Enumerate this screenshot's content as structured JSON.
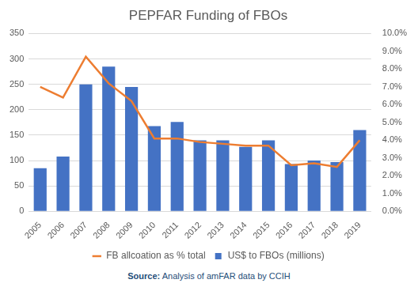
{
  "chart_data": {
    "type": "bar",
    "title": "PEPFAR Funding of FBOs",
    "source": "Source: Analysis of amFAR data by CCIH",
    "categories": [
      "2005",
      "2006",
      "2007",
      "2008",
      "2009",
      "2010",
      "2011",
      "2012",
      "2013",
      "2014",
      "2015",
      "2016",
      "2017",
      "2018",
      "2019"
    ],
    "series": [
      {
        "name": "US$ to FBOs (millions)",
        "type": "bar",
        "color": "#4472c4",
        "values": [
          85,
          108,
          250,
          285,
          245,
          168,
          176,
          140,
          140,
          127,
          140,
          93,
          100,
          97,
          160
        ]
      },
      {
        "name": "FB allcoation as % total",
        "type": "line",
        "axis": "y2",
        "color": "#ed7d31",
        "marker": "none",
        "line_style": "solid",
        "values": [
          7.0,
          6.4,
          8.7,
          7.2,
          6.2,
          4.1,
          4.1,
          3.9,
          3.8,
          3.7,
          3.7,
          2.6,
          2.7,
          2.5,
          4.0
        ]
      }
    ],
    "ylim": [
      0,
      350
    ],
    "yticks": [
      0,
      50,
      100,
      150,
      200,
      250,
      300,
      350
    ],
    "y2lim": [
      0,
      10
    ],
    "y2ticks": [
      {
        "value": 0,
        "label": "0.0%"
      },
      {
        "value": 1,
        "label": "1.0%"
      },
      {
        "value": 2,
        "label": "2.0%"
      },
      {
        "value": 3,
        "label": "3.0%"
      },
      {
        "value": 4,
        "label": "4.0%"
      },
      {
        "value": 5,
        "label": "5.0%"
      },
      {
        "value": 6,
        "label": "6.0%"
      },
      {
        "value": 7,
        "label": "7.0%"
      },
      {
        "value": 8,
        "label": "8.0%"
      },
      {
        "value": 9,
        "label": "9.0%"
      },
      {
        "value": 10,
        "label": "10.0%"
      }
    ],
    "grid": true,
    "legend": "bottom"
  }
}
